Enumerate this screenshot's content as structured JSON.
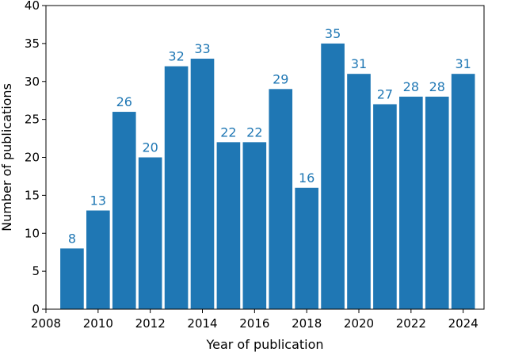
{
  "chart_data": {
    "type": "bar",
    "title": "",
    "xlabel": "Year of publication",
    "ylabel": "Number of publications",
    "x": [
      2009,
      2010,
      2011,
      2012,
      2013,
      2014,
      2015,
      2016,
      2017,
      2018,
      2019,
      2020,
      2021,
      2022,
      2023,
      2024
    ],
    "values": [
      8,
      13,
      26,
      20,
      32,
      33,
      22,
      22,
      29,
      16,
      35,
      31,
      27,
      28,
      28,
      31
    ],
    "xlim": [
      2008,
      2024.8
    ],
    "ylim": [
      0,
      40
    ],
    "xticks": [
      "2008",
      "2010",
      "2012",
      "2014",
      "2016",
      "2018",
      "2020",
      "2022",
      "2024"
    ],
    "yticks": [
      "0",
      "5",
      "10",
      "15",
      "20",
      "25",
      "30",
      "35",
      "40"
    ],
    "grid": false,
    "legend": "none",
    "bar_color": "#1f77b4",
    "label_color": "#1f77b4"
  }
}
